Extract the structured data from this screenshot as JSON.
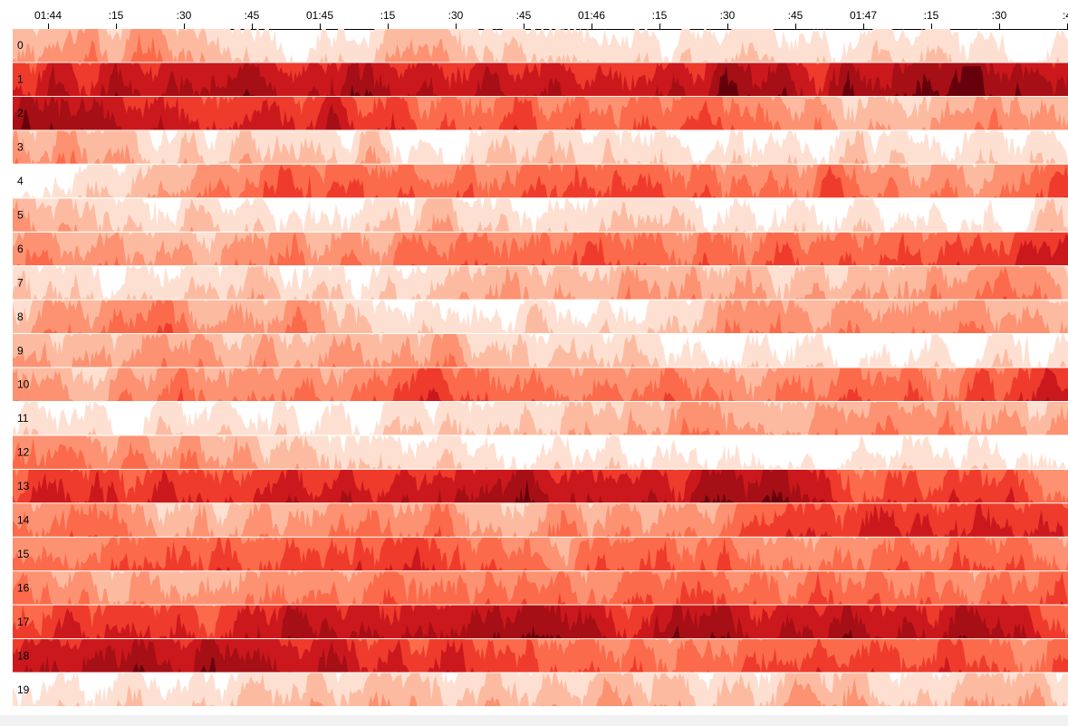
{
  "chart_data": {
    "type": "horizon",
    "x_ticks": [
      "01:44",
      ":15",
      ":30",
      ":45",
      "01:45",
      ":15",
      ":30",
      ":45",
      "01:46",
      ":15",
      ":30",
      ":45",
      "01:47",
      ":15",
      ":30",
      ":4"
    ],
    "rows": [
      "0",
      "1",
      "2",
      "3",
      "4",
      "5",
      "6",
      "7",
      "8",
      "9",
      "10",
      "11",
      "12",
      "13",
      "14",
      "15",
      "16",
      "17",
      "18",
      "19"
    ],
    "bands": 4,
    "colors": [
      "#fee0d2",
      "#fcbba1",
      "#fc9272",
      "#fb6a4a",
      "#ef3b2c",
      "#cb181d",
      "#a50f15",
      "#67000d"
    ],
    "row_profiles": [
      [
        2.0,
        2.6,
        2.8,
        1.0,
        0.3,
        1.0,
        2.0,
        1.5,
        1.0,
        0.6,
        0.8,
        0.6,
        0.4,
        0.6,
        0.4,
        0.5
      ],
      [
        5.2,
        6.0,
        6.2,
        6.8,
        5.8,
        6.6,
        5.8,
        5.6,
        6.4,
        5.6,
        6.6,
        6.2,
        6.8,
        6.8,
        6.8,
        6.6
      ],
      [
        6.6,
        6.8,
        6.0,
        5.2,
        5.6,
        5.8,
        4.4,
        3.8,
        3.6,
        3.8,
        3.6,
        3.0,
        2.2,
        1.6,
        2.4,
        2.0
      ],
      [
        2.6,
        2.4,
        1.6,
        1.8,
        1.2,
        0.8,
        0.4,
        0.6,
        0.6,
        1.2,
        0.4,
        0.6,
        1.2,
        0.8,
        0.6,
        0.8
      ],
      [
        0.4,
        0.8,
        1.6,
        3.0,
        4.6,
        3.8,
        3.4,
        3.6,
        4.6,
        4.8,
        3.2,
        3.4,
        3.4,
        3.6,
        3.0,
        4.0
      ],
      [
        2.4,
        2.0,
        0.8,
        0.6,
        0.4,
        0.2,
        1.4,
        0.6,
        1.4,
        1.2,
        0.8,
        0.6,
        0.2,
        0.6,
        0.8,
        0.4
      ],
      [
        2.8,
        2.4,
        2.6,
        2.2,
        3.2,
        3.0,
        3.6,
        3.4,
        4.0,
        3.4,
        3.6,
        4.0,
        3.8,
        4.2,
        5.0,
        6.0
      ],
      [
        1.0,
        0.6,
        0.8,
        1.6,
        0.6,
        1.2,
        1.4,
        1.8,
        2.0,
        2.4,
        2.0,
        1.6,
        2.0,
        2.6,
        2.8,
        2.4
      ],
      [
        2.0,
        2.6,
        3.4,
        2.4,
        2.4,
        1.2,
        0.8,
        0.6,
        0.4,
        1.2,
        2.2,
        2.4,
        2.6,
        2.8,
        2.6,
        2.4
      ],
      [
        2.4,
        2.2,
        2.0,
        2.6,
        2.4,
        2.2,
        3.0,
        1.4,
        1.2,
        0.8,
        0.6,
        0.4,
        0.3,
        0.4,
        0.4,
        0.4
      ],
      [
        2.8,
        2.6,
        3.2,
        3.0,
        3.4,
        3.2,
        4.6,
        3.6,
        3.4,
        3.6,
        3.2,
        3.0,
        3.6,
        3.8,
        4.6,
        5.6
      ],
      [
        0.2,
        0.4,
        0.3,
        0.4,
        0.6,
        0.8,
        1.0,
        1.4,
        2.0,
        2.2,
        2.6,
        2.4,
        2.4,
        2.8,
        2.6,
        2.4
      ],
      [
        2.8,
        3.0,
        2.8,
        2.2,
        1.4,
        0.8,
        0.5,
        0.4,
        0.4,
        0.4,
        0.3,
        0.4,
        0.4,
        0.3,
        0.4,
        0.3
      ],
      [
        4.4,
        5.2,
        4.8,
        4.8,
        5.4,
        5.8,
        6.2,
        6.4,
        5.8,
        6.2,
        6.8,
        6.6,
        4.8,
        4.4,
        4.2,
        3.8
      ],
      [
        3.2,
        3.0,
        2.6,
        2.4,
        2.8,
        2.6,
        3.0,
        2.4,
        2.8,
        2.8,
        3.0,
        4.2,
        5.0,
        5.2,
        5.0,
        5.4
      ],
      [
        3.6,
        3.2,
        3.8,
        4.4,
        4.8,
        4.8,
        4.6,
        3.8,
        3.6,
        3.8,
        4.4,
        3.4,
        3.2,
        3.6,
        3.8,
        3.6
      ],
      [
        3.0,
        2.8,
        2.8,
        2.6,
        3.4,
        3.2,
        3.0,
        3.6,
        3.2,
        3.8,
        4.6,
        3.8,
        3.6,
        3.4,
        3.8,
        4.0
      ],
      [
        4.2,
        5.2,
        5.6,
        5.2,
        6.0,
        6.4,
        5.8,
        6.6,
        6.6,
        5.8,
        6.6,
        6.2,
        6.6,
        6.0,
        6.8,
        4.6
      ],
      [
        5.4,
        5.8,
        6.8,
        6.6,
        5.8,
        6.0,
        5.2,
        4.4,
        3.8,
        3.6,
        4.0,
        4.2,
        4.4,
        4.6,
        4.2,
        4.0
      ],
      [
        0.3,
        0.4,
        0.6,
        1.2,
        1.8,
        1.4,
        1.6,
        1.4,
        1.6,
        2.0,
        1.4,
        1.6,
        2.0,
        1.8,
        1.4,
        1.6
      ]
    ]
  }
}
